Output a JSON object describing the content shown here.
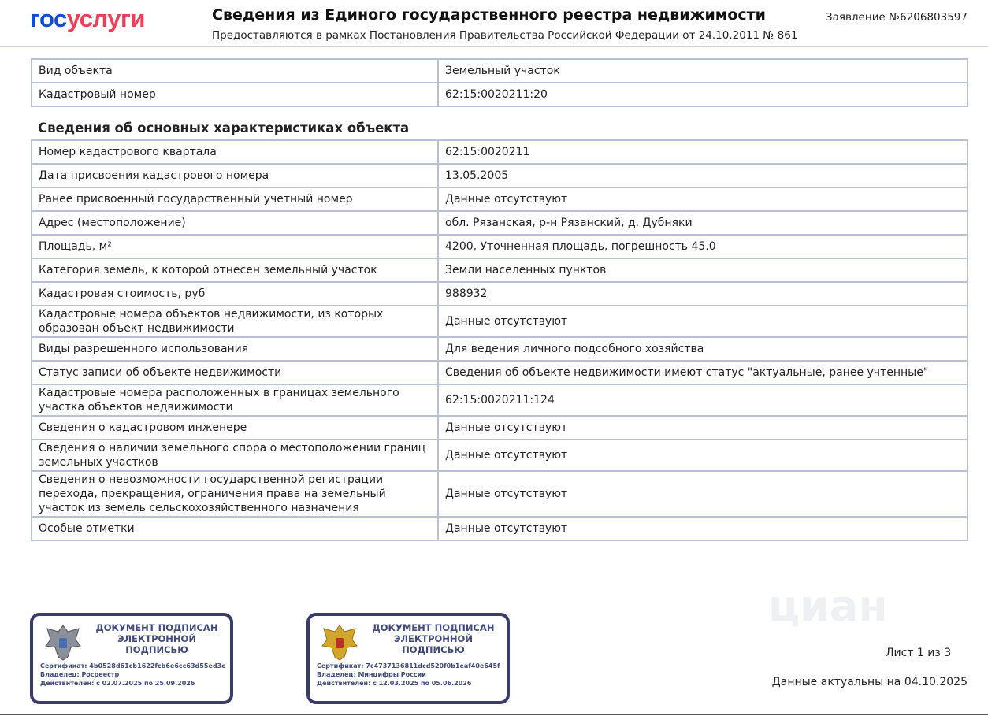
{
  "header": {
    "logo": {
      "part1": "гос",
      "part2": "услуги"
    },
    "title": "Сведения из Единого государственного реестра недвижимости",
    "subtitle": "Предоставляются в рамках Постановления Правительства Российской Федерации от 24.10.2011 № 861",
    "application": "Заявление №6206803597"
  },
  "table1": {
    "rows": [
      [
        "Вид объекта",
        "Земельный участок"
      ],
      [
        "Кадастровый номер",
        "62:15:0020211:20"
      ]
    ]
  },
  "section_title": "Сведения об основных характеристиках объекта",
  "table2": {
    "rows": [
      [
        "Номер кадастрового квартала",
        "62:15:0020211"
      ],
      [
        "Дата присвоения кадастрового номера",
        "13.05.2005"
      ],
      [
        "Ранее присвоенный государственный учетный номер",
        "Данные отсутствуют"
      ],
      [
        "Адрес (местоположение)",
        "обл. Рязанская, р-н Рязанский, д. Дубняки"
      ],
      [
        "Площадь, м²",
        "4200, Уточненная площадь, погрешность 45.0"
      ],
      [
        "Категория земель, к которой отнесен земельный участок",
        "Земли населенных пунктов"
      ],
      [
        "Кадастровая стоимость, руб",
        "988932"
      ],
      [
        "Кадастровые номера объектов недвижимости, из которых образован объект недвижимости",
        "Данные отсутствуют"
      ],
      [
        "Виды разрешенного использования",
        "Для ведения личного подсобного хозяйства"
      ],
      [
        "Статус записи об объекте недвижимости",
        "Сведения об объекте недвижимости имеют статус \"актуальные, ранее учтенные\""
      ],
      [
        "Кадастровые номера расположенных в границах земельного участка объектов недвижимости",
        "62:15:0020211:124"
      ],
      [
        "Сведения о кадастровом инженере",
        "Данные отсутствуют"
      ],
      [
        "Сведения о наличии земельного спора о местоположении границ земельных участков",
        "Данные отсутствуют"
      ],
      [
        "Сведения о невозможности государственной регистрации перехода, прекращения, ограничения права на земельный участок из земель сельскохозяйственного назначения",
        "Данные отсутствуют"
      ],
      [
        "Особые отметки",
        "Данные отсутствуют"
      ]
    ]
  },
  "stamps": [
    {
      "title": "ДОКУМЕНТ ПОДПИСАН ЭЛЕКТРОННОЙ ПОДПИСЬЮ",
      "certificate": "Сертификат: 4b0528d61cb1622fcb6e6cc63d55ed3c",
      "owner": "Владелец: Росреестр",
      "valid": "Действителен: с 02.07.2025 по 25.09.2026"
    },
    {
      "title": "ДОКУМЕНТ ПОДПИСАН ЭЛЕКТРОННОЙ ПОДПИСЬЮ",
      "certificate": "Сертификат: 7c4737136811dcd520f0b1eaf40e645f",
      "owner": "Владелец: Минцифры России",
      "valid": "Действителен: с 12.03.2025 по 05.06.2026"
    }
  ],
  "footer": {
    "page": "Лист 1 из 3",
    "actual": "Данные актуальны на 04.10.2025"
  },
  "watermark": "циан"
}
